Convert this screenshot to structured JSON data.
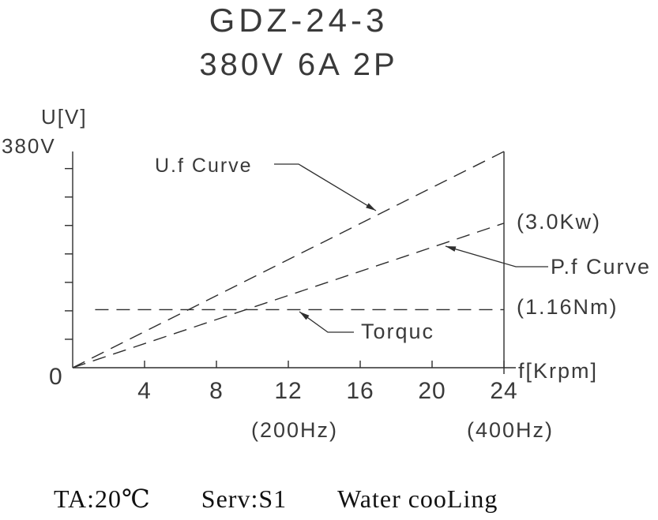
{
  "title": {
    "line1": "GDZ-24-3",
    "line2": "380V   6A   2P"
  },
  "chart_data": {
    "type": "line",
    "title": "GDZ-24-3",
    "subtitle": "380V   6A   2P",
    "grid": false,
    "legend_position": "inline-leaders",
    "x_axis": {
      "label": "f[Krpm]",
      "range": [
        0,
        24
      ],
      "ticks": [
        4,
        8,
        12,
        16,
        20,
        24
      ],
      "origin_label": "0",
      "freq_labels": [
        {
          "text": "(200Hz)",
          "at": 12
        },
        {
          "text": "(400Hz)",
          "at": 24
        }
      ]
    },
    "y_axis": {
      "label": "U[V]",
      "range": [
        0,
        380
      ],
      "top_label": "380V",
      "minor_tick_step": 50
    },
    "series": [
      {
        "name": "U.f Curve",
        "style": "dashed",
        "points": [
          [
            0,
            0
          ],
          [
            24,
            380
          ]
        ],
        "note": "voltage rises linearly from 0V at 0 Krpm to 380V at 24 Krpm"
      },
      {
        "name": "P.f Curve",
        "style": "dashed",
        "points": [
          [
            0,
            0
          ],
          [
            24,
            254
          ]
        ],
        "end_annotation": "(3.0Kw)",
        "note": "power rises linearly, reaching 3.0Kw at 24 Krpm (400Hz)"
      },
      {
        "name": "Torquc",
        "style": "dashed",
        "points": [
          [
            1.25,
            102
          ],
          [
            24,
            102
          ]
        ],
        "end_annotation": "(1.16Nm)",
        "note": "constant torque line at 1.16Nm"
      }
    ]
  },
  "footer": {
    "ta": "TA:20℃",
    "serv": "Serv:S1",
    "cooling": "Water cooLing"
  }
}
